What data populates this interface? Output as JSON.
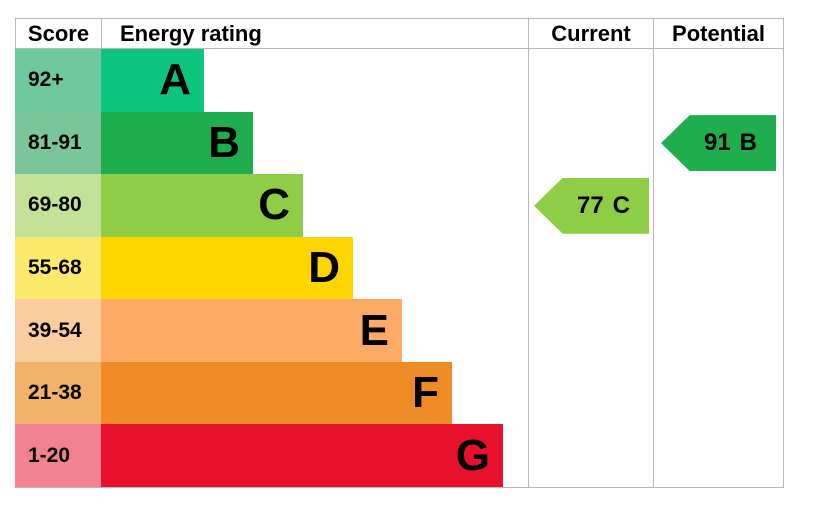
{
  "header": {
    "score": "Score",
    "energy_rating": "Energy rating",
    "current": "Current",
    "potential": "Potential"
  },
  "bands": [
    {
      "letter": "A",
      "score_range": "92+",
      "band_color": "#0cc47e",
      "score_color": "#6ec9a1"
    },
    {
      "letter": "B",
      "score_range": "81-91",
      "band_color": "#1fad4e",
      "score_color": "#7bc698"
    },
    {
      "letter": "C",
      "score_range": "69-80",
      "band_color": "#8dce46",
      "score_color": "#c1e297"
    },
    {
      "letter": "D",
      "score_range": "55-68",
      "band_color": "#ffd500",
      "score_color": "#fbe96e"
    },
    {
      "letter": "E",
      "score_range": "39-54",
      "band_color": "#fcaa65",
      "score_color": "#fbcc9e"
    },
    {
      "letter": "F",
      "score_range": "21-38",
      "band_color": "#ee8b24",
      "score_color": "#f3b269"
    },
    {
      "letter": "G",
      "score_range": "1-20",
      "band_color": "#e8112d",
      "score_color": "#f2828f"
    }
  ],
  "current": {
    "value": "77",
    "letter": "C",
    "band_index": 2,
    "color": "#8dce46"
  },
  "potential": {
    "value": "91",
    "letter": "B",
    "band_index": 1,
    "color": "#1fad4e"
  },
  "colors": {
    "border": "#b8b8b8",
    "text": "#000000",
    "background": "#ffffff"
  },
  "chart_data": {
    "type": "bar",
    "title": "Energy rating chart (EPC)",
    "categories": [
      "A",
      "B",
      "C",
      "D",
      "E",
      "F",
      "G"
    ],
    "score_ranges": [
      "92+",
      "81-91",
      "69-80",
      "55-68",
      "39-54",
      "21-38",
      "1-20"
    ],
    "band_colors": [
      "#0cc47e",
      "#1fad4e",
      "#8dce46",
      "#ffd500",
      "#fcaa65",
      "#ee8b24",
      "#e8112d"
    ],
    "bar_relative_lengths": [
      1,
      1.48,
      1.96,
      2.45,
      2.92,
      3.41,
      3.9
    ],
    "columns": [
      "Score",
      "Energy rating",
      "Current",
      "Potential"
    ],
    "current_rating": {
      "score": 77,
      "band": "C"
    },
    "potential_rating": {
      "score": 91,
      "band": "B"
    },
    "legend_position": "none",
    "grid": false
  }
}
